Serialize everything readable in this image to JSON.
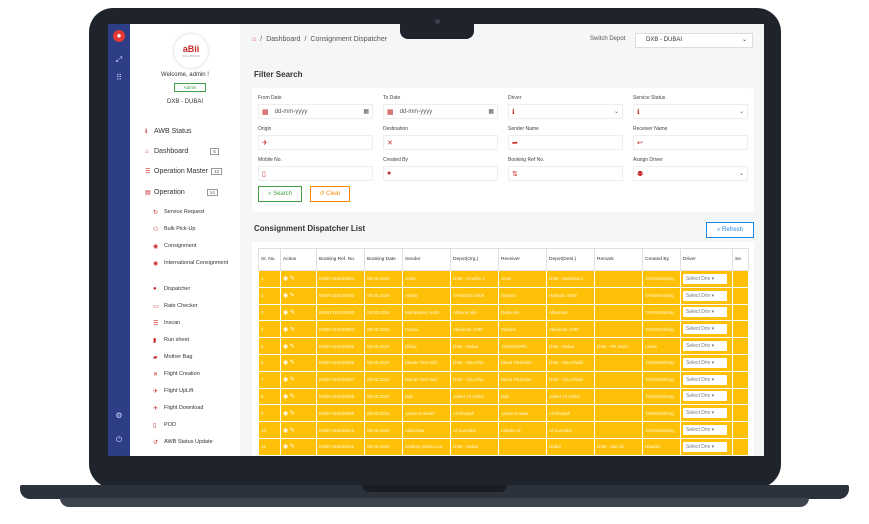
{
  "header": {
    "breadcrumb": [
      "Dashboard",
      "Consignment Dispatcher"
    ],
    "separator": "/",
    "switch_depot_label": "Switch Depot",
    "switch_depot_value": "DXB - DUBAI"
  },
  "sidebar": {
    "logo_text": "aBii",
    "logo_subtext": "SOLUTIONS",
    "welcome": "Welcome, admin !",
    "role_badge": "Admin",
    "depot": "DXB - DUBAI",
    "menu": [
      {
        "label": "AWB Status",
        "icon": "info-icon",
        "badge": ""
      },
      {
        "label": "Dashboard",
        "icon": "home-icon",
        "badge": "5"
      },
      {
        "label": "Operation Master",
        "icon": "list-icon",
        "badge": "12"
      },
      {
        "label": "Operation",
        "icon": "briefcase-icon",
        "badge": "14"
      }
    ],
    "submenu": [
      {
        "label": "Service Request",
        "icon": "refresh-icon"
      },
      {
        "label": "Bulk Pick-Up",
        "icon": "bikes-icon"
      },
      {
        "label": "Consignment",
        "icon": "package-icon"
      },
      {
        "label": "International Consignment",
        "icon": "globe-icon"
      },
      {
        "label": "Dispatcher",
        "icon": "user-icon"
      },
      {
        "label": "Rate Checker",
        "icon": "card-icon"
      },
      {
        "label": "Inscan",
        "icon": "list-icon"
      },
      {
        "label": "Run sheet",
        "icon": "sheet-icon"
      },
      {
        "label": "Mother Bag",
        "icon": "bag-icon"
      },
      {
        "label": "Flight Creation",
        "icon": "x-icon"
      },
      {
        "label": "Flight UpLift",
        "icon": "plane-icon"
      },
      {
        "label": "Flight Download",
        "icon": "plane-down-icon"
      },
      {
        "label": "POD",
        "icon": "file-icon"
      },
      {
        "label": "AWB Status Update",
        "icon": "sync-icon"
      }
    ]
  },
  "filter": {
    "title": "Filter Search",
    "fields": [
      {
        "label": "From Date",
        "value": "dd-mm-yyyy",
        "icon": "calendar-icon",
        "trail": "calendar-icon"
      },
      {
        "label": "To Date",
        "value": "dd-mm-yyyy",
        "icon": "calendar-icon",
        "trail": "calendar-icon"
      },
      {
        "label": "Driver",
        "value": "",
        "icon": "info-icon",
        "trail": "chevron-down-icon"
      },
      {
        "label": "Service Status",
        "value": "",
        "icon": "info-icon",
        "trail": "chevron-down-icon"
      },
      {
        "label": "Origin",
        "value": "",
        "icon": "plane-icon",
        "trail": ""
      },
      {
        "label": "Destination",
        "value": "",
        "icon": "x-icon",
        "trail": ""
      },
      {
        "label": "Sender Name",
        "value": "",
        "icon": "share-icon",
        "trail": ""
      },
      {
        "label": "Receiver Name",
        "value": "",
        "icon": "reply-icon",
        "trail": ""
      },
      {
        "label": "Mobile No.",
        "value": "",
        "icon": "phone-icon",
        "trail": ""
      },
      {
        "label": "Created By",
        "value": "",
        "icon": "user-icon",
        "trail": ""
      },
      {
        "label": "Booking Ref No.",
        "value": "",
        "icon": "sort-icon",
        "trail": ""
      },
      {
        "label": "Assign Driver",
        "value": "",
        "icon": "user-plus-icon",
        "trail": "chevron-down-icon"
      }
    ],
    "search_label": "Search",
    "clear_label": "Clear"
  },
  "list": {
    "title": "Consignment Dispatcher List",
    "refresh_label": "Refresh",
    "columns": [
      "Sr. No.",
      "Action",
      "Booking Ref. No.",
      "Booking Date",
      "Sender",
      "Depot(Org.)",
      "Receiver",
      "Depot(Dest.)",
      "Remark",
      "Created By",
      "Driver",
      "Se"
    ],
    "driver_placeholder": "Select Driv",
    "row_color": "#ffc107",
    "rows": [
      {
        "sr": "1",
        "ref": "KMDY115100001",
        "date": "09.03.2024",
        "sender": "Joshi",
        "org": "DXB - Amalfie A",
        "rcv": "Jessi",
        "dest": "DXB - Mubabai A",
        "remark": "",
        "by": "TANGWorking"
      },
      {
        "sr": "2",
        "ref": "KMDY115100002",
        "date": "09.03.2024",
        "sender": "Anjela",
        "org": "TANGDIS-2008",
        "rcv": "Sandra",
        "dest": "Hakaido 1008",
        "remark": "",
        "by": "TANGWorking"
      },
      {
        "sr": "3",
        "ref": "KMDY115100003",
        "date": "09.03.2024",
        "sender": "Mahaadrey Joshi",
        "org": "Ahkurai Alle",
        "rcv": "Deka Ale",
        "dest": "Alkaiman",
        "remark": "",
        "by": "TANGWorking"
      },
      {
        "sr": "4",
        "ref": "KMDY115100004",
        "date": "09.03.2024",
        "sender": "Prasai",
        "org": "Alkaiman 1008",
        "rcv": "Sandra",
        "dest": "Alkaiman 1008",
        "remark": "",
        "by": "TANGWorking"
      },
      {
        "sr": "5",
        "ref": "KMDY115100005",
        "date": "09.03.2024",
        "sender": "Dibsu",
        "org": "DXB - Dubai",
        "rcv": "TANGWORK",
        "dest": "DXB - Dubai",
        "remark": "DXB - PR 2024",
        "by": "Laxes"
      },
      {
        "sr": "6",
        "ref": "KMDY115100006",
        "date": "09.03.2024",
        "sender": "Marais Test Wid",
        "org": "DXB - Abu Dha",
        "rcv": "Marai Rhandan",
        "dest": "DXB - Abu Dhabi",
        "remark": "",
        "by": "TANGWorking"
      },
      {
        "sr": "7",
        "ref": "KMDY115100007",
        "date": "09.03.2024",
        "sender": "Marias Test Wid",
        "org": "DXB - Abu Dha",
        "rcv": "Marai Rhandan",
        "dest": "DXB - Abu Dhabi",
        "remark": "",
        "by": "TANGWorking"
      },
      {
        "sr": "8",
        "ref": "KMDY115100008",
        "date": "09.03.2024",
        "sender": "Bali",
        "org": "Jaleel Alt Sahm",
        "rcv": "Bali",
        "dest": "Jaleel Alt Sahm",
        "remark": "",
        "by": "TANGWorking"
      },
      {
        "sr": "9",
        "ref": "KMDY115100009",
        "date": "09.03.2024",
        "sender": "Jamie Scander",
        "org": "Al Mnayak",
        "rcv": "Jamie Scadar",
        "dest": "Al Mnayak",
        "remark": "",
        "by": "TANGWorking"
      },
      {
        "sr": "10",
        "ref": "KMDY115100010",
        "date": "09.03.2024",
        "sender": "Adia Naw",
        "org": "Al Sunaibar",
        "rcv": "Labale Ali",
        "dest": "Al Sunaibar",
        "remark": "",
        "by": "TANGWorking"
      },
      {
        "sr": "11",
        "ref": "KMDY115100011",
        "date": "09.03.2024",
        "sender": "Sudeep Dubai Lsa",
        "org": "DXB - Dubai",
        "rcv": "",
        "dest": "Dubai",
        "remark": "DXB - abd ull",
        "by": "Naadan"
      }
    ]
  }
}
